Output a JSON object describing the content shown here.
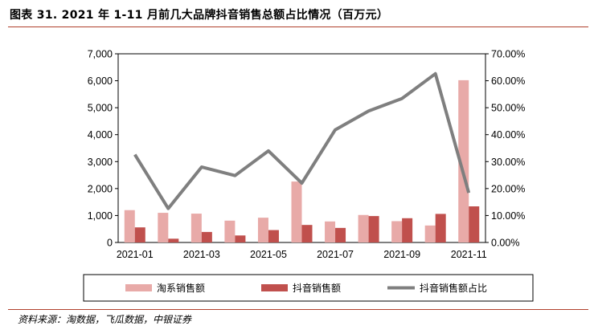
{
  "title": "图表 31. 2021 年 1-11 月前几大品牌抖音销售总额占比情况（百万元）",
  "source": "资料来源：淘数据，飞瓜数据，中银证券",
  "colors": {
    "taobao_bar": "#e8aaa8",
    "douyin_bar": "#c0504d",
    "share_line": "#7f7f7f",
    "rule": "#b0412d"
  },
  "chart_data": {
    "type": "bar",
    "categories": [
      "2021-01",
      "2021-02",
      "2021-03",
      "2021-04",
      "2021-05",
      "2021-06",
      "2021-07",
      "2021-08",
      "2021-09",
      "2021-10",
      "2021-11"
    ],
    "x_tick_labels": [
      "2021-01",
      "",
      "2021-03",
      "",
      "2021-05",
      "",
      "2021-07",
      "",
      "2021-09",
      "",
      "2021-11"
    ],
    "series": [
      {
        "name": "淘系销售额",
        "type": "bar",
        "axis": "left",
        "values": [
          1200,
          1100,
          1070,
          810,
          920,
          2260,
          780,
          1020,
          790,
          630,
          6020
        ]
      },
      {
        "name": "抖音销售额",
        "type": "bar",
        "axis": "left",
        "values": [
          560,
          140,
          390,
          260,
          460,
          650,
          540,
          980,
          900,
          1060,
          1340
        ]
      },
      {
        "name": "抖音销售额占比",
        "type": "line",
        "axis": "right",
        "values": [
          32.6,
          12.6,
          28.0,
          24.8,
          34.0,
          22.0,
          41.8,
          48.8,
          53.4,
          62.6,
          18.4
        ]
      }
    ],
    "left_axis": {
      "min": 0,
      "max": 7000,
      "ticks": [
        "0",
        "1,000",
        "2,000",
        "3,000",
        "4,000",
        "5,000",
        "6,000",
        "7,000"
      ]
    },
    "right_axis": {
      "min": 0,
      "max": 70,
      "ticks": [
        "0.00%",
        "10.00%",
        "20.00%",
        "30.00%",
        "40.00%",
        "50.00%",
        "60.00%",
        "70.00%"
      ]
    },
    "legend": {
      "position": "bottom"
    }
  }
}
